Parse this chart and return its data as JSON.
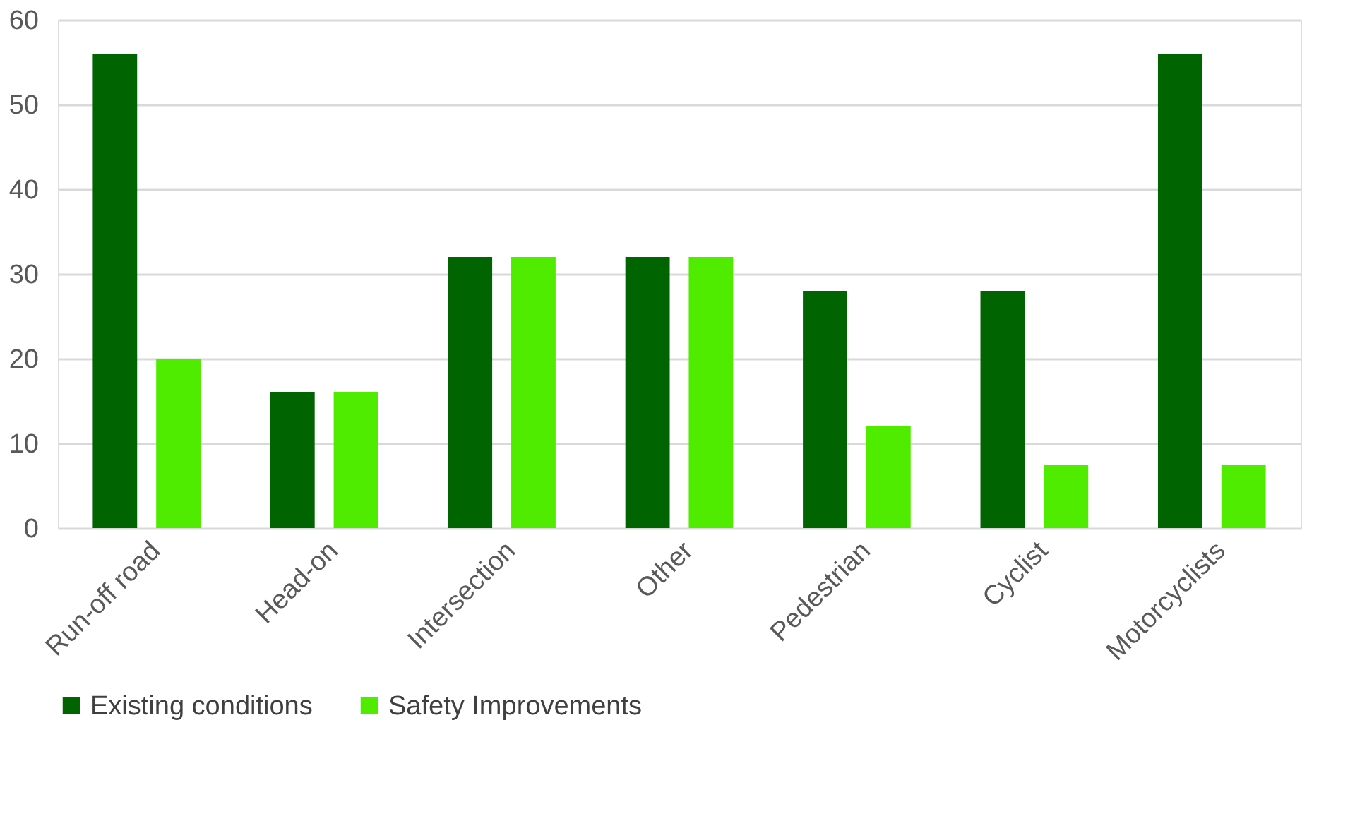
{
  "chart_data": {
    "type": "bar",
    "categories": [
      "Run-off road",
      "Head-on",
      "Intersection",
      "Other",
      "Pedestrian",
      "Cyclist",
      "Motorcyclists"
    ],
    "series": [
      {
        "name": "Existing conditions",
        "color": "#006400",
        "values": [
          56,
          16,
          32,
          32,
          28,
          28,
          56
        ]
      },
      {
        "name": "Safety Improvements",
        "color": "#4fec00",
        "values": [
          20,
          16,
          32,
          32,
          12,
          7.5,
          7.5
        ]
      }
    ],
    "ylim": [
      0,
      60
    ],
    "yticks": [
      0,
      10,
      20,
      30,
      40,
      50,
      60
    ],
    "grid": "y",
    "legend": "bottom"
  }
}
